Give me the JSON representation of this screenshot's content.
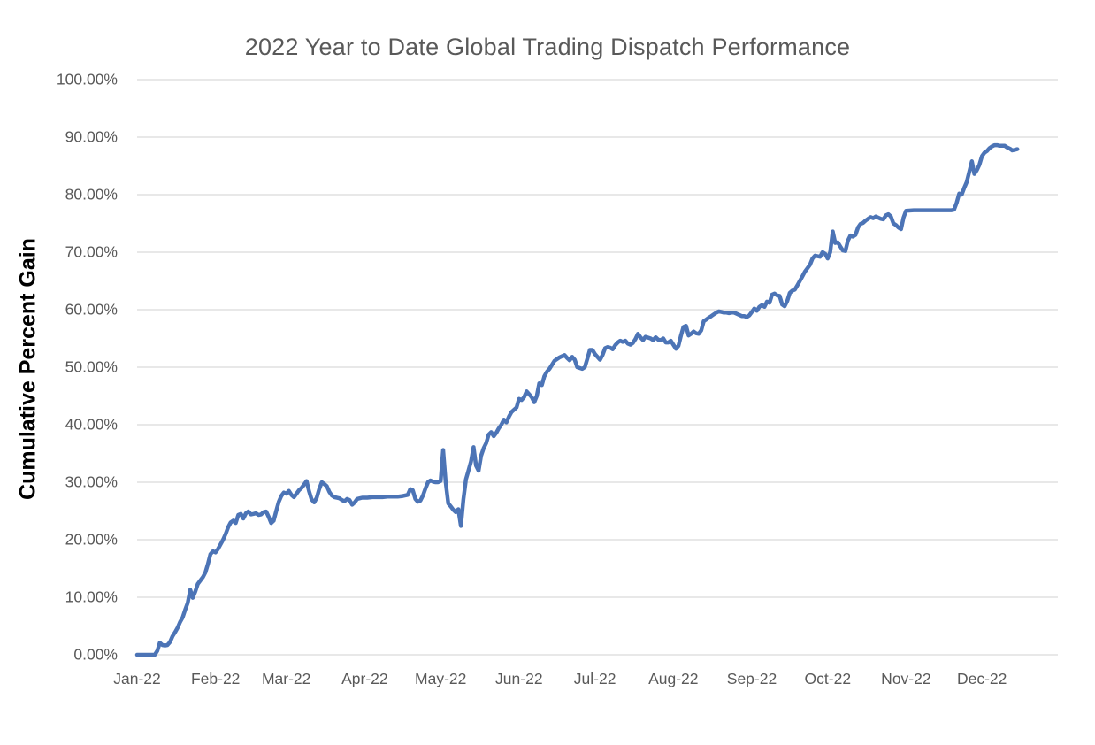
{
  "chart_data": {
    "type": "line",
    "title": "2022 Year to Date Global Trading Dispatch Performance",
    "ylabel": "Cumulative Percent Gain",
    "xlabel": "",
    "legend_position": "none",
    "grid": "horizontal",
    "line_color": "#4C74B6",
    "grid_color": "#D9D9D9",
    "text_color": "#595959",
    "title_color": "#595959",
    "ylim": [
      0,
      100
    ],
    "xlim_days": [
      1,
      366
    ],
    "x_unit": "day_of_year_2022",
    "y_ticks": [
      0,
      10,
      20,
      30,
      40,
      50,
      60,
      70,
      80,
      90,
      100
    ],
    "y_tick_labels": [
      "0.00%",
      "10.00%",
      "20.00%",
      "30.00%",
      "40.00%",
      "50.00%",
      "60.00%",
      "70.00%",
      "80.00%",
      "90.00%",
      "100.00%"
    ],
    "x_tick_days": [
      1,
      32,
      60,
      91,
      121,
      152,
      182,
      213,
      244,
      274,
      305,
      335
    ],
    "x_tick_labels": [
      "Jan-22",
      "Feb-22",
      "Mar-22",
      "Apr-22",
      "May-22",
      "Jun-22",
      "Jul-22",
      "Aug-22",
      "Sep-22",
      "Oct-22",
      "Nov-22",
      "Dec-22"
    ],
    "series": [
      {
        "name": "Cumulative Percent Gain",
        "points": [
          [
            1,
            0
          ],
          [
            5,
            0
          ],
          [
            8,
            0
          ],
          [
            9,
            0.7
          ],
          [
            10,
            2.1
          ],
          [
            11,
            1.7
          ],
          [
            12,
            1.6
          ],
          [
            13,
            1.7
          ],
          [
            14,
            2.2
          ],
          [
            15,
            3.2
          ],
          [
            16,
            3.9
          ],
          [
            17,
            4.7
          ],
          [
            18,
            5.7
          ],
          [
            19,
            6.5
          ],
          [
            20,
            7.8
          ],
          [
            21,
            9.0
          ],
          [
            22,
            11.3
          ],
          [
            23,
            9.9
          ],
          [
            24,
            11.0
          ],
          [
            25,
            12.3
          ],
          [
            26,
            12.9
          ],
          [
            27,
            13.5
          ],
          [
            28,
            14.3
          ],
          [
            29,
            15.8
          ],
          [
            30,
            17.5
          ],
          [
            31,
            18.0
          ],
          [
            32,
            17.8
          ],
          [
            33,
            18.4
          ],
          [
            34,
            19.2
          ],
          [
            35,
            20.0
          ],
          [
            36,
            21.0
          ],
          [
            37,
            22.2
          ],
          [
            38,
            23.0
          ],
          [
            39,
            23.3
          ],
          [
            40,
            22.9
          ],
          [
            41,
            24.3
          ],
          [
            42,
            24.5
          ],
          [
            43,
            23.7
          ],
          [
            44,
            24.6
          ],
          [
            45,
            24.9
          ],
          [
            46,
            24.4
          ],
          [
            47,
            24.5
          ],
          [
            48,
            24.6
          ],
          [
            49,
            24.3
          ],
          [
            50,
            24.4
          ],
          [
            51,
            24.8
          ],
          [
            52,
            24.9
          ],
          [
            53,
            24.0
          ],
          [
            54,
            22.9
          ],
          [
            55,
            23.3
          ],
          [
            56,
            25.0
          ],
          [
            57,
            26.6
          ],
          [
            58,
            27.6
          ],
          [
            59,
            28.2
          ],
          [
            60,
            28.0
          ],
          [
            61,
            28.5
          ],
          [
            62,
            27.8
          ],
          [
            63,
            27.4
          ],
          [
            64,
            28.0
          ],
          [
            65,
            28.6
          ],
          [
            66,
            29.0
          ],
          [
            67,
            29.6
          ],
          [
            68,
            30.2
          ],
          [
            69,
            28.4
          ],
          [
            70,
            27.0
          ],
          [
            71,
            26.5
          ],
          [
            72,
            27.3
          ],
          [
            73,
            28.8
          ],
          [
            74,
            30.0
          ],
          [
            75,
            29.7
          ],
          [
            76,
            29.3
          ],
          [
            77,
            28.3
          ],
          [
            78,
            27.7
          ],
          [
            79,
            27.4
          ],
          [
            80,
            27.3
          ],
          [
            81,
            27.2
          ],
          [
            82,
            26.9
          ],
          [
            83,
            26.7
          ],
          [
            84,
            27.1
          ],
          [
            85,
            26.9
          ],
          [
            86,
            26.1
          ],
          [
            87,
            26.5
          ],
          [
            88,
            27.1
          ],
          [
            89,
            27.2
          ],
          [
            90,
            27.3
          ],
          [
            92,
            27.3
          ],
          [
            94,
            27.4
          ],
          [
            96,
            27.4
          ],
          [
            98,
            27.4
          ],
          [
            100,
            27.5
          ],
          [
            102,
            27.5
          ],
          [
            104,
            27.5
          ],
          [
            106,
            27.6
          ],
          [
            108,
            27.8
          ],
          [
            109,
            28.8
          ],
          [
            110,
            28.6
          ],
          [
            111,
            27.1
          ],
          [
            112,
            26.6
          ],
          [
            113,
            26.8
          ],
          [
            114,
            27.7
          ],
          [
            115,
            28.9
          ],
          [
            116,
            30.0
          ],
          [
            117,
            30.3
          ],
          [
            118,
            30.1
          ],
          [
            119,
            30.0
          ],
          [
            120,
            30.0
          ],
          [
            121,
            30.2
          ],
          [
            122,
            35.6
          ],
          [
            123,
            30.0
          ],
          [
            124,
            26.3
          ],
          [
            125,
            25.8
          ],
          [
            126,
            25.2
          ],
          [
            127,
            24.8
          ],
          [
            128,
            25.3
          ],
          [
            129,
            22.4
          ],
          [
            130,
            27.0
          ],
          [
            131,
            30.5
          ],
          [
            132,
            32.0
          ],
          [
            133,
            33.6
          ],
          [
            134,
            36.1
          ],
          [
            135,
            32.9
          ],
          [
            136,
            32.0
          ],
          [
            137,
            34.6
          ],
          [
            138,
            35.9
          ],
          [
            139,
            36.8
          ],
          [
            140,
            38.3
          ],
          [
            141,
            38.7
          ],
          [
            142,
            38.0
          ],
          [
            143,
            38.6
          ],
          [
            144,
            39.4
          ],
          [
            145,
            40.0
          ],
          [
            146,
            40.9
          ],
          [
            147,
            40.4
          ],
          [
            148,
            41.4
          ],
          [
            149,
            42.2
          ],
          [
            150,
            42.6
          ],
          [
            151,
            43.0
          ],
          [
            152,
            44.5
          ],
          [
            153,
            44.3
          ],
          [
            154,
            44.8
          ],
          [
            155,
            45.8
          ],
          [
            156,
            45.3
          ],
          [
            157,
            44.8
          ],
          [
            158,
            43.9
          ],
          [
            159,
            45.0
          ],
          [
            160,
            47.2
          ],
          [
            161,
            46.9
          ],
          [
            162,
            48.4
          ],
          [
            163,
            49.2
          ],
          [
            164,
            49.7
          ],
          [
            165,
            50.4
          ],
          [
            166,
            51.1
          ],
          [
            167,
            51.4
          ],
          [
            168,
            51.7
          ],
          [
            169,
            51.9
          ],
          [
            170,
            52.1
          ],
          [
            171,
            51.6
          ],
          [
            172,
            51.2
          ],
          [
            173,
            51.8
          ],
          [
            174,
            51.3
          ],
          [
            175,
            50.0
          ],
          [
            177,
            49.7
          ],
          [
            178,
            50.0
          ],
          [
            179,
            51.5
          ],
          [
            180,
            53.0
          ],
          [
            181,
            53.0
          ],
          [
            182,
            52.3
          ],
          [
            184,
            51.3
          ],
          [
            185,
            52.1
          ],
          [
            186,
            53.3
          ],
          [
            187,
            53.5
          ],
          [
            188,
            53.4
          ],
          [
            189,
            53.1
          ],
          [
            190,
            53.8
          ],
          [
            191,
            54.3
          ],
          [
            192,
            54.6
          ],
          [
            193,
            54.4
          ],
          [
            194,
            54.6
          ],
          [
            195,
            54.1
          ],
          [
            196,
            53.9
          ],
          [
            197,
            54.2
          ],
          [
            198,
            54.9
          ],
          [
            199,
            55.8
          ],
          [
            200,
            55.2
          ],
          [
            201,
            54.7
          ],
          [
            202,
            55.3
          ],
          [
            204,
            55.0
          ],
          [
            205,
            54.7
          ],
          [
            206,
            55.2
          ],
          [
            207,
            54.8
          ],
          [
            208,
            54.7
          ],
          [
            209,
            55.0
          ],
          [
            210,
            54.3
          ],
          [
            211,
            54.3
          ],
          [
            212,
            54.6
          ],
          [
            213,
            53.9
          ],
          [
            214,
            53.2
          ],
          [
            215,
            53.7
          ],
          [
            216,
            55.5
          ],
          [
            217,
            57.0
          ],
          [
            218,
            57.2
          ],
          [
            219,
            55.5
          ],
          [
            220,
            55.8
          ],
          [
            221,
            56.2
          ],
          [
            222,
            55.9
          ],
          [
            223,
            55.8
          ],
          [
            224,
            56.4
          ],
          [
            225,
            58.0
          ],
          [
            226,
            58.3
          ],
          [
            227,
            58.6
          ],
          [
            228,
            58.9
          ],
          [
            229,
            59.2
          ],
          [
            230,
            59.5
          ],
          [
            231,
            59.7
          ],
          [
            232,
            59.6
          ],
          [
            233,
            59.5
          ],
          [
            234,
            59.5
          ],
          [
            235,
            59.4
          ],
          [
            236,
            59.5
          ],
          [
            237,
            59.5
          ],
          [
            238,
            59.3
          ],
          [
            240,
            58.9
          ],
          [
            241,
            58.9
          ],
          [
            242,
            58.7
          ],
          [
            243,
            59.0
          ],
          [
            244,
            59.6
          ],
          [
            245,
            60.2
          ],
          [
            246,
            59.8
          ],
          [
            247,
            60.5
          ],
          [
            248,
            60.8
          ],
          [
            249,
            60.5
          ],
          [
            250,
            61.4
          ],
          [
            251,
            61.2
          ],
          [
            252,
            62.6
          ],
          [
            253,
            62.8
          ],
          [
            254,
            62.5
          ],
          [
            255,
            62.4
          ],
          [
            256,
            60.9
          ],
          [
            257,
            60.6
          ],
          [
            258,
            61.5
          ],
          [
            259,
            62.9
          ],
          [
            260,
            63.3
          ],
          [
            261,
            63.5
          ],
          [
            262,
            64.2
          ],
          [
            263,
            65.0
          ],
          [
            264,
            65.8
          ],
          [
            265,
            66.6
          ],
          [
            267,
            67.8
          ],
          [
            268,
            68.9
          ],
          [
            269,
            69.4
          ],
          [
            270,
            69.3
          ],
          [
            271,
            69.2
          ],
          [
            272,
            70.0
          ],
          [
            273,
            69.7
          ],
          [
            274,
            68.9
          ],
          [
            275,
            70.0
          ],
          [
            276,
            73.6
          ],
          [
            277,
            71.6
          ],
          [
            278,
            71.7
          ],
          [
            279,
            71.0
          ],
          [
            280,
            70.3
          ],
          [
            281,
            70.2
          ],
          [
            282,
            72.0
          ],
          [
            283,
            72.9
          ],
          [
            284,
            72.7
          ],
          [
            285,
            73.0
          ],
          [
            286,
            74.3
          ],
          [
            287,
            74.9
          ],
          [
            288,
            75.1
          ],
          [
            289,
            75.5
          ],
          [
            290,
            75.8
          ],
          [
            291,
            76.1
          ],
          [
            292,
            75.9
          ],
          [
            293,
            76.2
          ],
          [
            295,
            75.8
          ],
          [
            296,
            75.7
          ],
          [
            297,
            76.4
          ],
          [
            298,
            76.6
          ],
          [
            299,
            76.2
          ],
          [
            300,
            75.0
          ],
          [
            301,
            74.7
          ],
          [
            302,
            74.3
          ],
          [
            303,
            74.0
          ],
          [
            304,
            76.0
          ],
          [
            305,
            77.2
          ],
          [
            308,
            77.3
          ],
          [
            311,
            77.3
          ],
          [
            314,
            77.3
          ],
          [
            317,
            77.3
          ],
          [
            320,
            77.3
          ],
          [
            323,
            77.3
          ],
          [
            324,
            77.4
          ],
          [
            325,
            78.6
          ],
          [
            326,
            80.2
          ],
          [
            327,
            80.0
          ],
          [
            328,
            81.2
          ],
          [
            329,
            82.2
          ],
          [
            330,
            84.0
          ],
          [
            331,
            85.8
          ],
          [
            332,
            83.6
          ],
          [
            333,
            84.3
          ],
          [
            334,
            85.2
          ],
          [
            335,
            86.7
          ],
          [
            336,
            87.3
          ],
          [
            337,
            87.6
          ],
          [
            338,
            88.1
          ],
          [
            339,
            88.4
          ],
          [
            340,
            88.6
          ],
          [
            341,
            88.6
          ],
          [
            342,
            88.5
          ],
          [
            343,
            88.5
          ],
          [
            344,
            88.5
          ],
          [
            345,
            88.2
          ],
          [
            346,
            88.0
          ],
          [
            347,
            87.7
          ],
          [
            348,
            87.8
          ],
          [
            349,
            87.9
          ]
        ]
      }
    ]
  }
}
